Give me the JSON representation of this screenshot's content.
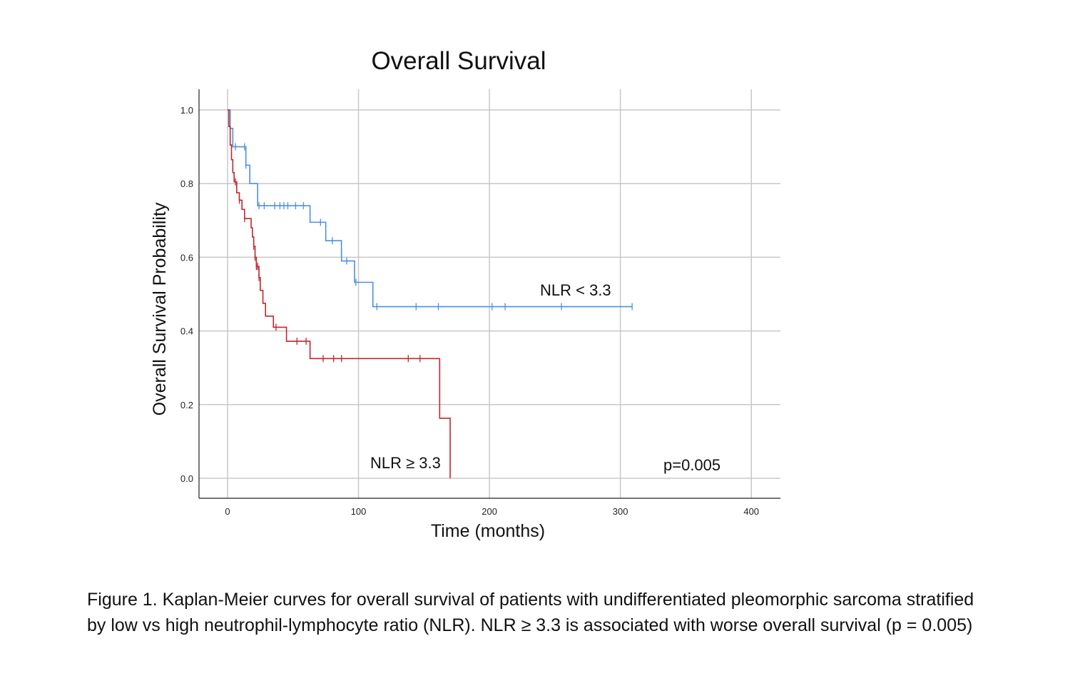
{
  "chart_data": {
    "type": "line",
    "title": "Overall Survival",
    "xlabel": "Time (months)",
    "ylabel": "Overall Survival Probability",
    "xlim": [
      0,
      400
    ],
    "ylim": [
      0,
      1
    ],
    "xticks": [
      0,
      100,
      200,
      300,
      400
    ],
    "yticks": [
      0.0,
      0.2,
      0.4,
      0.6,
      0.8,
      1.0
    ],
    "xtick_labels": [
      "0",
      "100",
      "200",
      "300",
      "400"
    ],
    "ytick_labels": [
      "0.0",
      "0.2",
      "0.4",
      "0.6",
      "0.8",
      "1.0"
    ],
    "grid": true,
    "step": true,
    "series": [
      {
        "name": "NLR < 3.3",
        "color": "#4a90e2",
        "steps": [
          [
            0,
            1.0
          ],
          [
            2,
            0.95
          ],
          [
            4,
            0.9
          ],
          [
            14,
            0.85
          ],
          [
            17,
            0.8
          ],
          [
            23,
            0.74
          ],
          [
            63,
            0.695
          ],
          [
            75,
            0.645
          ],
          [
            87,
            0.59
          ],
          [
            97,
            0.532
          ],
          [
            111,
            0.466
          ],
          [
            309,
            0.466
          ]
        ],
        "censored": [
          [
            6,
            0.9
          ],
          [
            13,
            0.9
          ],
          [
            14,
            0.85
          ],
          [
            24,
            0.74
          ],
          [
            28,
            0.74
          ],
          [
            36,
            0.74
          ],
          [
            40,
            0.74
          ],
          [
            43,
            0.74
          ],
          [
            46,
            0.74
          ],
          [
            52,
            0.74
          ],
          [
            58,
            0.74
          ],
          [
            71,
            0.695
          ],
          [
            80,
            0.645
          ],
          [
            91,
            0.59
          ],
          [
            98,
            0.532
          ],
          [
            114,
            0.466
          ],
          [
            144,
            0.466
          ],
          [
            161,
            0.466
          ],
          [
            202,
            0.466
          ],
          [
            212,
            0.466
          ],
          [
            255,
            0.466
          ],
          [
            309,
            0.466
          ]
        ]
      },
      {
        "name": "NLR ≥ 3.3",
        "color": "#c0272d",
        "steps": [
          [
            0,
            1.0
          ],
          [
            1,
            0.955
          ],
          [
            2,
            0.905
          ],
          [
            3,
            0.865
          ],
          [
            4,
            0.83
          ],
          [
            5,
            0.805
          ],
          [
            7,
            0.775
          ],
          [
            9,
            0.755
          ],
          [
            11,
            0.73
          ],
          [
            13,
            0.705
          ],
          [
            18,
            0.68
          ],
          [
            19,
            0.655
          ],
          [
            20,
            0.63
          ],
          [
            21,
            0.6
          ],
          [
            22,
            0.575
          ],
          [
            24,
            0.545
          ],
          [
            25,
            0.51
          ],
          [
            27,
            0.475
          ],
          [
            29,
            0.44
          ],
          [
            35,
            0.41
          ],
          [
            45,
            0.372
          ],
          [
            63,
            0.325
          ],
          [
            162,
            0.163
          ],
          [
            170,
            0.0
          ]
        ],
        "censored": [
          [
            6,
            0.805
          ],
          [
            9,
            0.755
          ],
          [
            13,
            0.705
          ],
          [
            20,
            0.63
          ],
          [
            21,
            0.6
          ],
          [
            22,
            0.575
          ],
          [
            23,
            0.575
          ],
          [
            24,
            0.545
          ],
          [
            37,
            0.41
          ],
          [
            53,
            0.372
          ],
          [
            60,
            0.372
          ],
          [
            73,
            0.325
          ],
          [
            81,
            0.325
          ],
          [
            87,
            0.325
          ],
          [
            138,
            0.325
          ],
          [
            147,
            0.325
          ]
        ]
      }
    ],
    "annotations": {
      "low_label": "NLR < 3.3",
      "high_label": "NLR ≥ 3.3",
      "p_value": "p=0.005"
    }
  },
  "caption": {
    "line1": "Figure 1. Kaplan-Meier curves for overall survival of patients with undifferentiated pleomorphic sarcoma stratified",
    "line2": "by low vs high neutrophil-lymphocyte ratio (NLR). NLR ≥ 3.3 is associated with worse overall survival (p = 0.005)"
  }
}
